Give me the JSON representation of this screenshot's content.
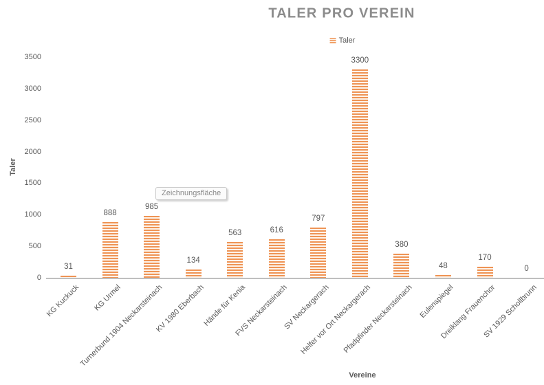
{
  "chart": {
    "title": "TALER PRO VEREIN",
    "legend_label": "Taler",
    "y_axis_title": "Taler",
    "x_axis_title": "Vereine"
  },
  "tooltip": {
    "text": "Zeichnungsfläche"
  },
  "chart_data": {
    "type": "bar",
    "title": "TALER PRO VEREIN",
    "xlabel": "Vereine",
    "ylabel": "Taler",
    "categories": [
      "KG Kuckuck",
      "KG Urmel",
      "Turnerbund 1904 Neckarsteinach",
      "KV 1980 Eberbach",
      "Hände für Kenia",
      "FVS Neckarsteinach",
      "SV Neckargerach",
      "Helfer vor Ort Neckargerach",
      "Pfadpfinder Neckarsteinach",
      "Eulenspiegel",
      "Dreiklang Frauenchor",
      "SV 1929 Schollbrunn"
    ],
    "series": [
      {
        "name": "Taler",
        "values": [
          31,
          888,
          985,
          134,
          563,
          616,
          797,
          3300,
          380,
          48,
          170,
          0
        ]
      }
    ],
    "ylim": [
      0,
      3500
    ],
    "ytick_interval": 500,
    "yticks": [
      0,
      500,
      1000,
      1500,
      2000,
      2500,
      3000,
      3500
    ],
    "grid": false,
    "legend_position": "top-center",
    "data_labels": true,
    "bar_color": "#ED7D31",
    "bar_pattern": "light-horizontal-stripes",
    "axis_line_color": "#BFBFBF",
    "label_color": "#595959",
    "title_color": "#8C8C8C"
  }
}
